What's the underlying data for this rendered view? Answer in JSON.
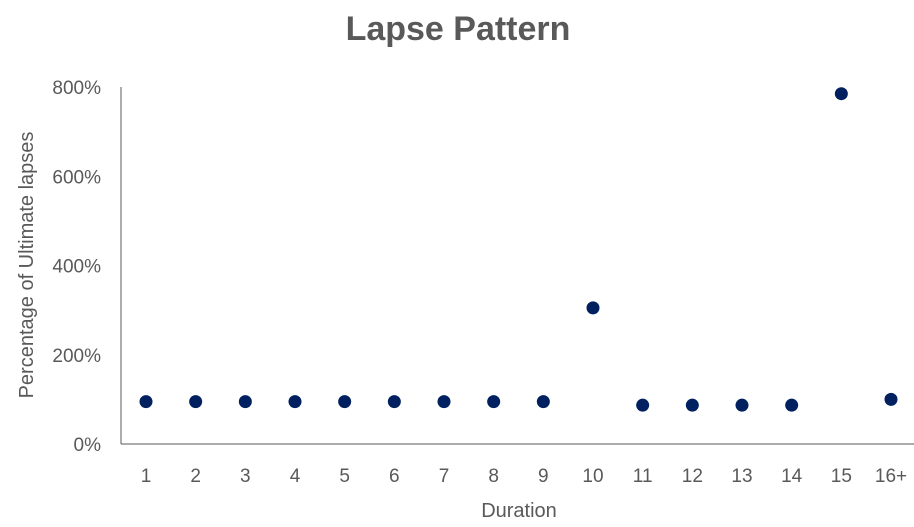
{
  "chart_data": {
    "type": "scatter",
    "title": "Lapse Pattern",
    "xlabel": "Duration",
    "ylabel": "Percentage of Ultimate lapses",
    "categories": [
      "1",
      "2",
      "3",
      "4",
      "5",
      "6",
      "7",
      "8",
      "9",
      "10",
      "11",
      "12",
      "13",
      "14",
      "15",
      "16+"
    ],
    "values": [
      95,
      95,
      95,
      95,
      95,
      95,
      95,
      95,
      95,
      305,
      87,
      87,
      87,
      87,
      785,
      100
    ],
    "value_unit": "percent",
    "ylim": [
      0,
      800
    ],
    "yticks": [
      0,
      200,
      400,
      600,
      800
    ],
    "ytick_labels": [
      "0%",
      "200%",
      "400%",
      "600%",
      "800%"
    ],
    "grid": false,
    "legend": "none",
    "marker_color": "#002060",
    "text_color": "#595959",
    "axis_color": "#595959"
  }
}
